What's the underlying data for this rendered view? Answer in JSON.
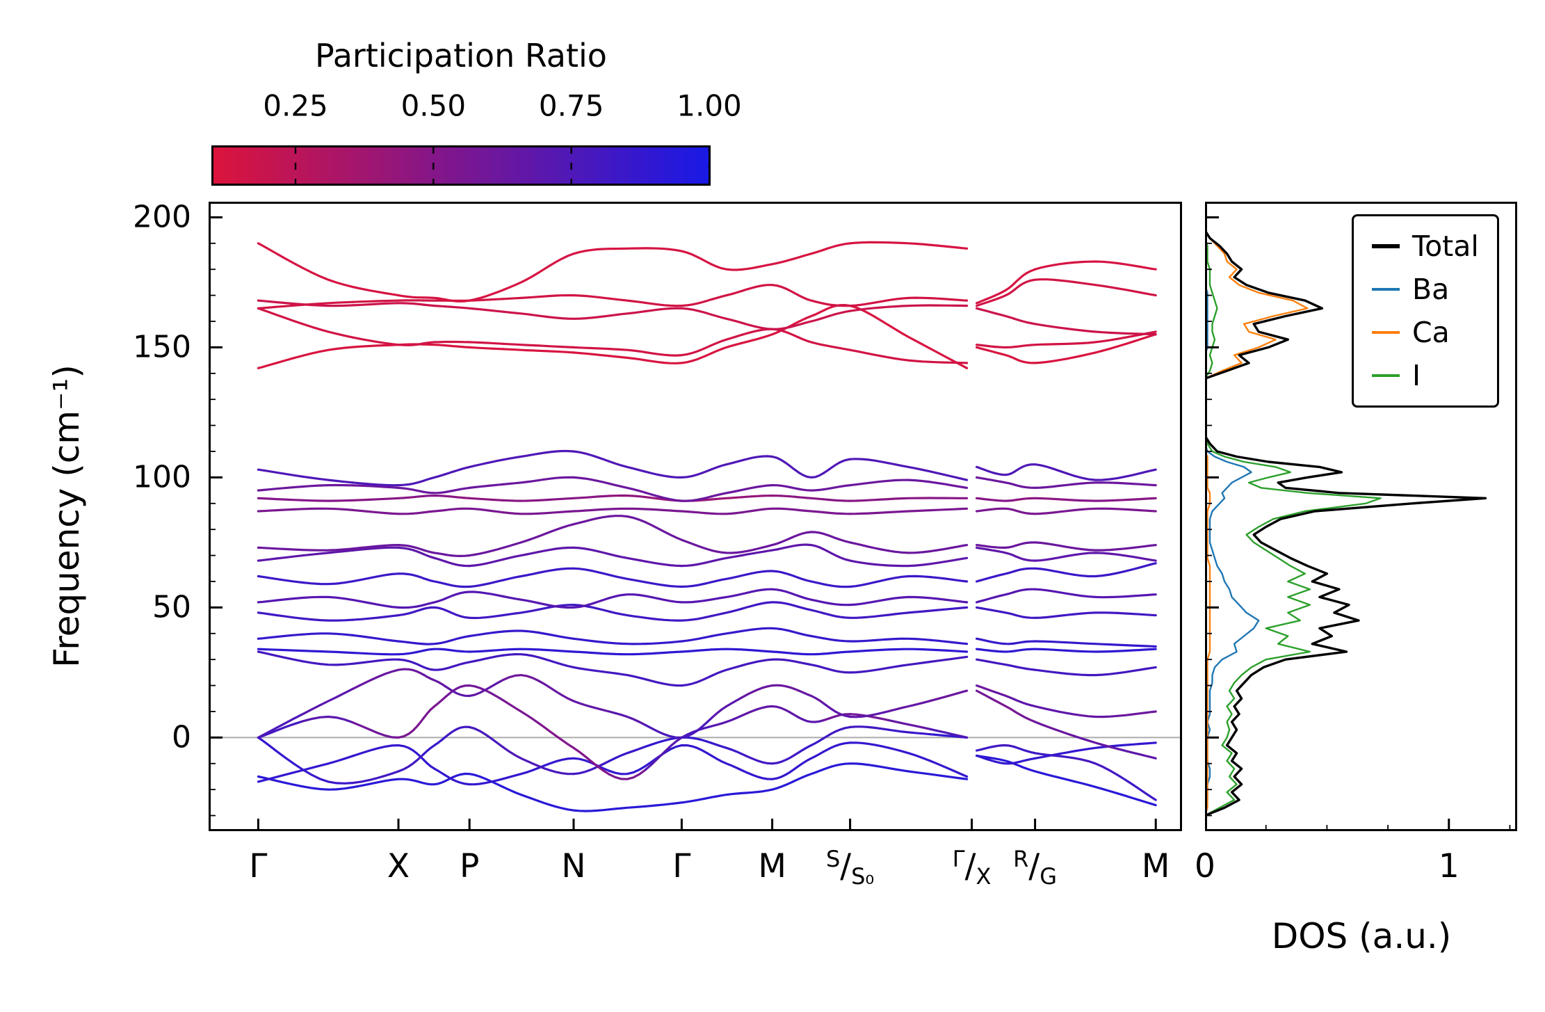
{
  "chart_data": {
    "colorbar": {
      "title": "Participation Ratio",
      "ticks": [
        0.25,
        0.5,
        0.75,
        1.0
      ],
      "tick_labels": [
        "0.25",
        "0.50",
        "0.75",
        "1.00"
      ],
      "vmin": 0.1,
      "vmax": 1.0,
      "cmap": [
        {
          "t": 0.0,
          "color": "#dc143c"
        },
        {
          "t": 1.0,
          "color": "#1919e6"
        }
      ]
    },
    "band_structure": {
      "type": "line",
      "ylabel": "Frequency (cm⁻¹)",
      "yticks": [
        0,
        50,
        100,
        150,
        200
      ],
      "ylim": [
        -36,
        206
      ],
      "zero_line_color": "#ababab",
      "kpath": {
        "labels": [
          {
            "text": "Γ"
          },
          {
            "text": "X"
          },
          {
            "text": "P"
          },
          {
            "text": "N"
          },
          {
            "text": "Γ"
          },
          {
            "text": "M"
          },
          {
            "sup": "S",
            "sub": "S₀"
          },
          {
            "sup": "Γ",
            "sub": "X"
          },
          {
            "sup": "R",
            "sub": "G"
          },
          {
            "text": "M"
          }
        ],
        "positions": [
          0.051,
          0.195,
          0.268,
          0.375,
          0.486,
          0.579,
          0.659,
          0.784,
          0.849,
          0.973
        ],
        "segment_a_x": [
          0.051,
          0.123,
          0.195,
          0.232,
          0.268,
          0.321,
          0.375,
          0.43,
          0.486,
          0.532,
          0.579,
          0.619,
          0.659,
          0.719,
          0.779
        ],
        "segment_b_x": [
          0.789,
          0.819,
          0.849,
          0.911,
          0.973
        ]
      },
      "bands": [
        {
          "a": [
            -15,
            -20,
            -16,
            -18,
            -14,
            -22,
            -28,
            -27,
            -25,
            -22,
            -20,
            -14,
            -10,
            -13,
            -16
          ],
          "b": [
            -7,
            -9,
            -13,
            -19,
            -26
          ],
          "pr": 0.92
        },
        {
          "a": [
            -17,
            -10,
            -3,
            -12,
            -18,
            -14,
            -8,
            -14,
            -3,
            -10,
            -16,
            -8,
            -2,
            -6,
            -15
          ],
          "b": [
            -7,
            -10,
            -8,
            -4,
            -2
          ],
          "pr": 0.88
        },
        {
          "a": [
            0,
            -17,
            -13,
            -3,
            4,
            -8,
            -14,
            -6,
            0,
            -4,
            -10,
            -3,
            4,
            2,
            0
          ],
          "b": [
            -5,
            -3,
            -6,
            -10,
            -24
          ],
          "pr": {
            "a": [
              0.9,
              0.85,
              0.8,
              0.85,
              0.8,
              0.75,
              0.8,
              0.85,
              0.9,
              0.85,
              0.8,
              0.85,
              0.8,
              0.85,
              0.9
            ],
            "b": [
              0.85,
              0.8,
              0.85,
              0.8,
              0.85
            ]
          }
        },
        {
          "a": [
            0,
            8,
            0,
            12,
            20,
            10,
            -4,
            -16,
            0,
            6,
            12,
            6,
            9,
            5,
            0
          ],
          "b": [
            18,
            12,
            6,
            -2,
            -8
          ],
          "pr": {
            "a": [
              0.85,
              0.7,
              0.55,
              0.55,
              0.6,
              0.55,
              0.5,
              0.55,
              0.8,
              0.7,
              0.65,
              0.7,
              0.55,
              0.65,
              0.8
            ],
            "b": [
              0.6,
              0.55,
              0.6,
              0.65,
              0.7
            ]
          }
        },
        {
          "a": [
            0,
            14,
            26,
            22,
            16,
            24,
            14,
            8,
            0,
            12,
            20,
            16,
            8,
            12,
            18
          ],
          "b": [
            20,
            16,
            12,
            8,
            10
          ],
          "pr": {
            "a": [
              0.8,
              0.7,
              0.6,
              0.65,
              0.7,
              0.6,
              0.65,
              0.7,
              0.8,
              0.7,
              0.6,
              0.65,
              0.7,
              0.65,
              0.6
            ],
            "b": [
              0.6,
              0.65,
              0.7,
              0.65,
              0.6
            ]
          }
        },
        {
          "a": [
            33,
            28,
            30,
            26,
            29,
            32,
            27,
            24,
            20,
            26,
            30,
            28,
            25,
            28,
            31
          ],
          "b": [
            30,
            28,
            26,
            24,
            27
          ],
          "pr": 0.8
        },
        {
          "a": [
            34,
            33,
            32,
            34,
            33,
            34,
            33,
            32,
            33,
            34,
            33,
            32,
            33,
            34,
            33
          ],
          "b": [
            34,
            33,
            34,
            33,
            34
          ],
          "pr": 0.9
        },
        {
          "a": [
            38,
            40,
            37,
            36,
            39,
            41,
            38,
            36,
            37,
            40,
            42,
            39,
            37,
            38,
            36
          ],
          "b": [
            38,
            36,
            37,
            36,
            35
          ],
          "pr": 0.86
        },
        {
          "a": [
            48,
            45,
            47,
            50,
            46,
            48,
            51,
            47,
            45,
            48,
            52,
            49,
            46,
            48,
            50
          ],
          "b": [
            50,
            48,
            46,
            48,
            47
          ],
          "pr": 0.82
        },
        {
          "a": [
            52,
            54,
            50,
            52,
            56,
            53,
            50,
            55,
            52,
            54,
            57,
            53,
            51,
            54,
            52
          ],
          "b": [
            52,
            55,
            57,
            54,
            55
          ],
          "pr": 0.72
        },
        {
          "a": [
            62,
            59,
            63,
            60,
            58,
            62,
            65,
            61,
            58,
            61,
            64,
            60,
            58,
            62,
            60
          ],
          "b": [
            60,
            63,
            65,
            62,
            67
          ],
          "pr": 0.84
        },
        {
          "a": [
            68,
            71,
            73,
            69,
            66,
            70,
            73,
            69,
            66,
            69,
            72,
            74,
            68,
            66,
            69
          ],
          "b": [
            73,
            71,
            68,
            71,
            68
          ],
          "pr": 0.68
        },
        {
          "a": [
            73,
            72,
            74,
            71,
            70,
            75,
            82,
            85,
            76,
            71,
            74,
            79,
            75,
            71,
            74
          ],
          "b": [
            74,
            73,
            75,
            72,
            74
          ],
          "pr": 0.62
        },
        {
          "a": [
            87,
            88,
            86,
            87,
            88,
            86,
            87,
            88,
            87,
            86,
            88,
            87,
            86,
            87,
            88
          ],
          "b": [
            87,
            88,
            86,
            88,
            87
          ],
          "pr": 0.55
        },
        {
          "a": [
            92,
            91,
            92,
            93,
            92,
            91,
            92,
            93,
            91,
            92,
            93,
            92,
            91,
            92,
            92
          ],
          "b": [
            92,
            91,
            92,
            91,
            92
          ],
          "pr": {
            "a": [
              0.5,
              0.5,
              0.48,
              0.5,
              0.45,
              0.48,
              0.5,
              0.45,
              0.42,
              0.4,
              0.45,
              0.48,
              0.5,
              0.48,
              0.5
            ],
            "b": [
              0.48,
              0.5,
              0.45,
              0.5,
              0.48
            ]
          }
        },
        {
          "a": [
            95,
            97,
            96,
            94,
            96,
            98,
            100,
            96,
            91,
            94,
            97,
            95,
            97,
            99,
            96
          ],
          "b": [
            100,
            98,
            96,
            98,
            97
          ],
          "pr": 0.62
        },
        {
          "a": [
            103,
            99,
            97,
            100,
            104,
            108,
            110,
            104,
            100,
            105,
            108,
            100,
            107,
            104,
            99
          ],
          "b": [
            104,
            101,
            105,
            99,
            103
          ],
          "pr": 0.75
        },
        {
          "a": [
            142,
            149,
            151,
            151,
            150,
            149,
            148,
            146,
            144,
            150,
            155,
            162,
            166,
            154,
            142
          ],
          "b": [
            150,
            147,
            144,
            148,
            155
          ],
          "pr": 0.12
        },
        {
          "a": [
            165,
            156,
            151,
            152,
            152,
            151,
            150,
            149,
            147,
            153,
            157,
            152,
            149,
            145,
            144
          ],
          "b": [
            151,
            150,
            151,
            152,
            156
          ],
          "pr": 0.15
        },
        {
          "a": [
            168,
            166,
            167,
            166,
            165,
            163,
            161,
            163,
            165,
            161,
            157,
            160,
            164,
            166,
            166
          ],
          "b": [
            165,
            162,
            159,
            156,
            155
          ],
          "pr": 0.18
        },
        {
          "a": [
            165,
            167,
            168,
            168,
            168,
            169,
            170,
            168,
            166,
            170,
            174,
            168,
            166,
            169,
            168
          ],
          "b": [
            166,
            170,
            176,
            174,
            170
          ],
          "pr": 0.15
        },
        {
          "a": [
            190,
            176,
            170,
            169,
            168,
            175,
            186,
            188,
            187,
            180,
            182,
            186,
            190,
            190,
            188
          ],
          "b": [
            167,
            172,
            180,
            183,
            180
          ],
          "pr": 0.13
        }
      ]
    },
    "dos": {
      "type": "line",
      "xlabel": "DOS (a.u.)",
      "xticks": [
        0,
        1
      ],
      "xlim": [
        0,
        1.28
      ],
      "legend": [
        {
          "key": "total",
          "label": "Total",
          "color": "#000000"
        },
        {
          "key": "ba",
          "label": "Ba",
          "color": "#1f77b4"
        },
        {
          "key": "ca",
          "label": "Ca",
          "color": "#ff7f0e"
        },
        {
          "key": "i",
          "label": "I",
          "color": "#2ca02c"
        }
      ],
      "freq": [
        -30,
        -27,
        -24,
        -21,
        -18,
        -15,
        -12,
        -9,
        -6,
        -3,
        0,
        3,
        6,
        9,
        12,
        15,
        18,
        21,
        24,
        27,
        30,
        33,
        36,
        39,
        42,
        45,
        48,
        51,
        54,
        57,
        60,
        63,
        66,
        69,
        72,
        75,
        78,
        81,
        84,
        87,
        90,
        92,
        94,
        96,
        98,
        100,
        102,
        104,
        106,
        108,
        110,
        113,
        116,
        120,
        130,
        138,
        141,
        144,
        147,
        150,
        153,
        156,
        159,
        162,
        165,
        168,
        171,
        174,
        177,
        180,
        183,
        186,
        189,
        192,
        195
      ],
      "total": [
        0,
        0.08,
        0.14,
        0.11,
        0.15,
        0.12,
        0.15,
        0.11,
        0.13,
        0.09,
        0.11,
        0.13,
        0.11,
        0.14,
        0.12,
        0.15,
        0.13,
        0.16,
        0.19,
        0.24,
        0.33,
        0.58,
        0.44,
        0.52,
        0.47,
        0.63,
        0.53,
        0.59,
        0.47,
        0.55,
        0.44,
        0.5,
        0.42,
        0.35,
        0.29,
        0.23,
        0.2,
        0.25,
        0.31,
        0.45,
        0.85,
        1.15,
        0.55,
        0.33,
        0.3,
        0.42,
        0.56,
        0.47,
        0.26,
        0.13,
        0.05,
        0.02,
        0,
        0,
        0,
        0,
        0.09,
        0.18,
        0.14,
        0.26,
        0.34,
        0.22,
        0.2,
        0.33,
        0.48,
        0.41,
        0.26,
        0.17,
        0.12,
        0.15,
        0.11,
        0.09,
        0.06,
        0.02,
        0
      ],
      "ba": [
        0,
        0,
        0.01,
        0.01,
        0.01,
        0.02,
        0.02,
        0.01,
        0.01,
        0.01,
        0.01,
        0.02,
        0.01,
        0.02,
        0.02,
        0.02,
        0.02,
        0.03,
        0.03,
        0.04,
        0.07,
        0.13,
        0.12,
        0.16,
        0.2,
        0.22,
        0.17,
        0.14,
        0.11,
        0.1,
        0.08,
        0.07,
        0.05,
        0.04,
        0.03,
        0.02,
        0.02,
        0.02,
        0.02,
        0.03,
        0.06,
        0.08,
        0.07,
        0.09,
        0.11,
        0.15,
        0.19,
        0.16,
        0.09,
        0.04,
        0.01,
        0,
        0,
        0,
        0,
        0,
        0,
        0,
        0,
        0.01,
        0.01,
        0.01,
        0.01,
        0.01,
        0.01,
        0.01,
        0.01,
        0,
        0,
        0,
        0,
        0,
        0,
        0,
        0
      ],
      "ca": [
        0,
        0.01,
        0.01,
        0.01,
        0.01,
        0.01,
        0.01,
        0.01,
        0.01,
        0.01,
        0.01,
        0.01,
        0.01,
        0.01,
        0.01,
        0.01,
        0.01,
        0.01,
        0.01,
        0.01,
        0.01,
        0.02,
        0.02,
        0.02,
        0.02,
        0.02,
        0.02,
        0.02,
        0.02,
        0.02,
        0.02,
        0.02,
        0.02,
        0.01,
        0.01,
        0.01,
        0.01,
        0.01,
        0.01,
        0.01,
        0.02,
        0.02,
        0.02,
        0.01,
        0.01,
        0.01,
        0.01,
        0.01,
        0.01,
        0.01,
        0,
        0,
        0,
        0,
        0,
        0,
        0.07,
        0.15,
        0.12,
        0.22,
        0.29,
        0.18,
        0.16,
        0.28,
        0.42,
        0.36,
        0.22,
        0.14,
        0.1,
        0.13,
        0.09,
        0.08,
        0.05,
        0.02,
        0
      ],
      "i": [
        0,
        0.06,
        0.12,
        0.09,
        0.13,
        0.1,
        0.12,
        0.09,
        0.11,
        0.07,
        0.09,
        0.1,
        0.09,
        0.11,
        0.09,
        0.12,
        0.1,
        0.12,
        0.15,
        0.19,
        0.25,
        0.43,
        0.3,
        0.34,
        0.25,
        0.39,
        0.34,
        0.43,
        0.34,
        0.43,
        0.34,
        0.41,
        0.35,
        0.3,
        0.25,
        0.2,
        0.17,
        0.22,
        0.28,
        0.41,
        0.66,
        0.72,
        0.42,
        0.23,
        0.18,
        0.26,
        0.35,
        0.29,
        0.16,
        0.08,
        0.03,
        0.01,
        0,
        0,
        0,
        0,
        0.02,
        0.03,
        0.02,
        0.03,
        0.04,
        0.03,
        0.03,
        0.04,
        0.05,
        0.04,
        0.03,
        0.02,
        0.02,
        0.02,
        0.01,
        0.01,
        0.01,
        0,
        0
      ]
    }
  }
}
